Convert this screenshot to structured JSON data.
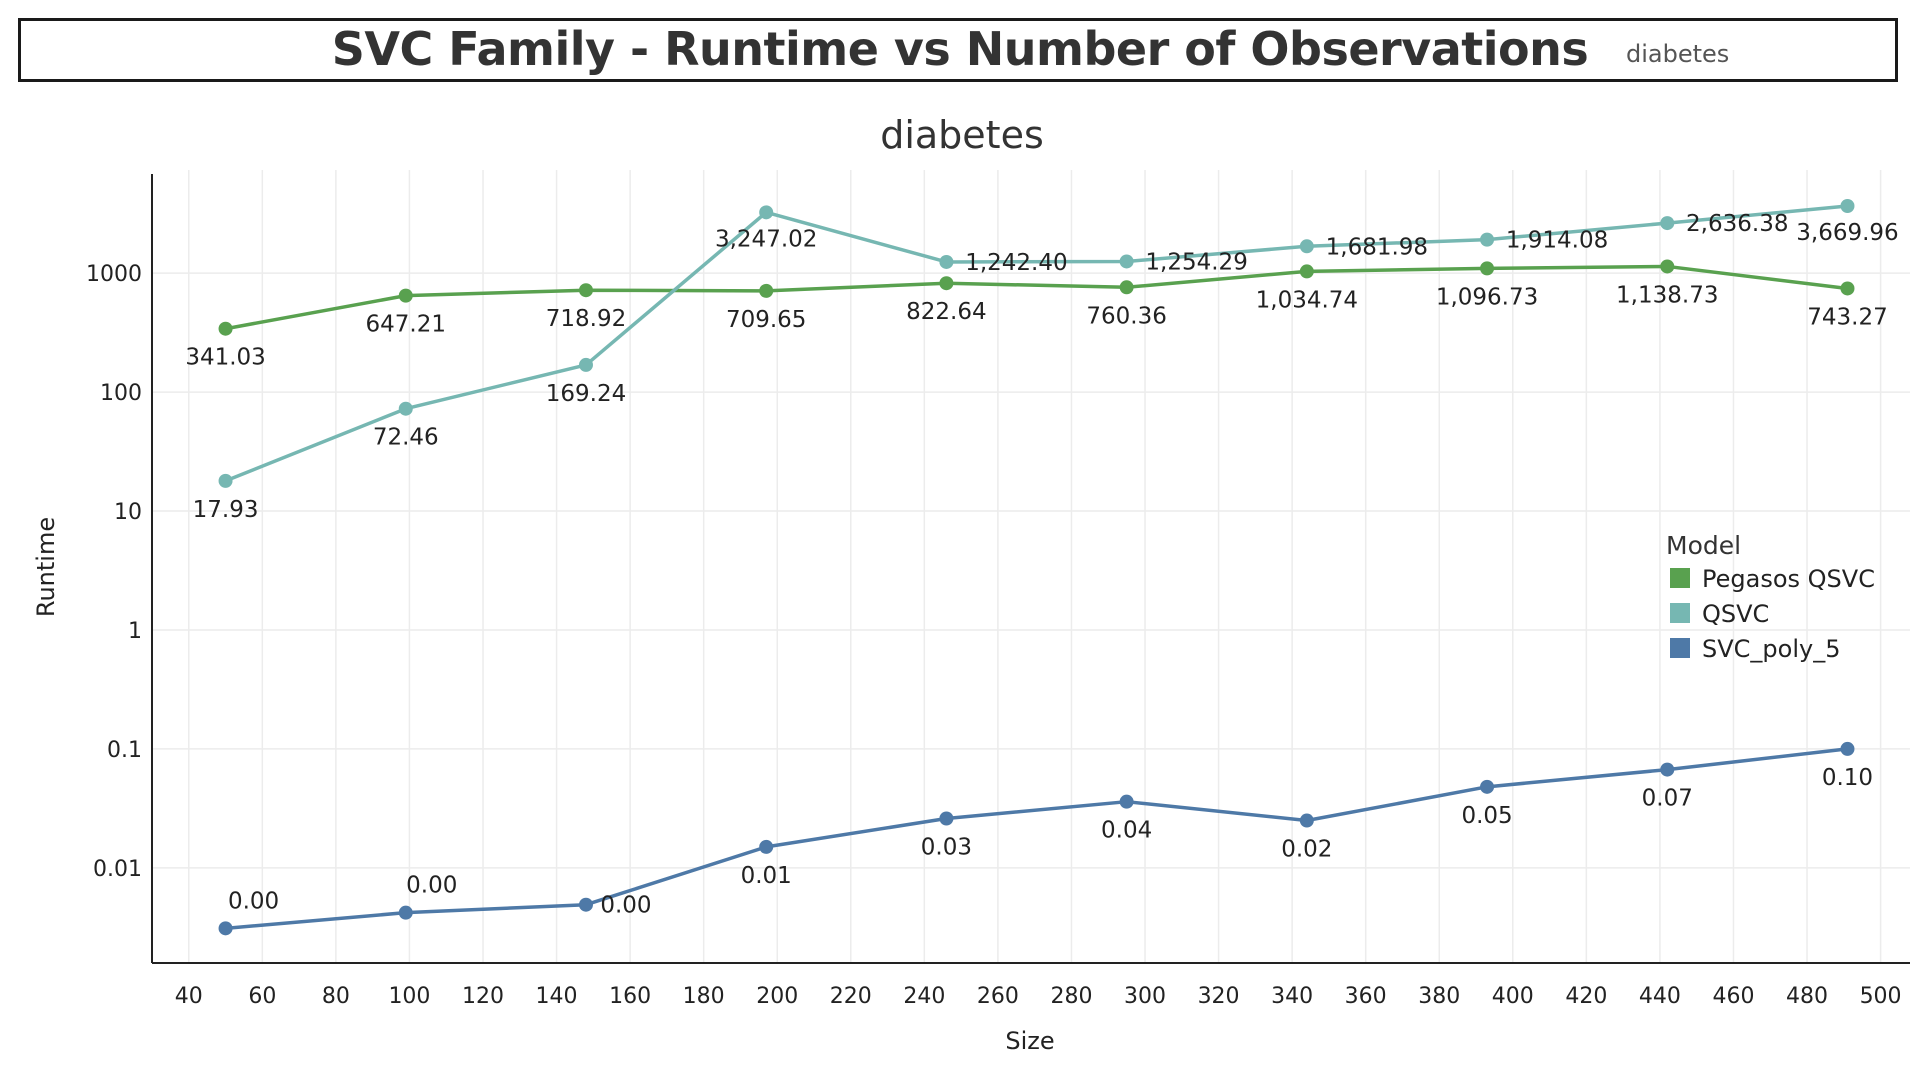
{
  "header": {
    "title": "SVC Family - Runtime vs Number of Observations",
    "filter_value": "diabetes"
  },
  "chart_data": {
    "type": "line",
    "title": "diabetes",
    "xlabel": "Size",
    "ylabel": "Runtime",
    "y_scale": "log",
    "xlim": [
      30,
      508
    ],
    "ylim_log10": [
      -2.8,
      3.8
    ],
    "x_ticks": [
      40,
      60,
      80,
      100,
      120,
      140,
      160,
      180,
      200,
      220,
      240,
      260,
      280,
      300,
      320,
      340,
      360,
      380,
      400,
      420,
      440,
      460,
      480,
      500
    ],
    "y_ticks": [
      {
        "value": 0.01,
        "label": "0.01"
      },
      {
        "value": 0.1,
        "label": "0.1"
      },
      {
        "value": 1,
        "label": "1"
      },
      {
        "value": 10,
        "label": "10"
      },
      {
        "value": 100,
        "label": "100"
      },
      {
        "value": 1000,
        "label": "1000"
      }
    ],
    "grid": true,
    "legend": {
      "title": "Model",
      "placement": "right"
    },
    "series": [
      {
        "name": "Pegasos QSVC",
        "color": "#59a14f",
        "x": [
          50,
          99,
          148,
          197,
          246,
          295,
          344,
          393,
          442,
          491
        ],
        "values": [
          341.03,
          647.21,
          718.92,
          709.65,
          822.64,
          760.36,
          1034.74,
          1096.73,
          1138.73,
          743.27
        ],
        "labels": [
          "341.03",
          "647.21",
          "718.92",
          "709.65",
          "822.64",
          "760.36",
          "1,034.74",
          "1,096.73",
          "1,138.73",
          "743.27"
        ]
      },
      {
        "name": "QSVC",
        "color": "#76b7b2",
        "x": [
          50,
          99,
          148,
          197,
          246,
          295,
          344,
          393,
          442,
          491
        ],
        "values": [
          17.93,
          72.46,
          169.24,
          3247.02,
          1242.4,
          1254.29,
          1681.98,
          1914.08,
          2636.38,
          3669.96
        ],
        "labels": [
          "17.93",
          "72.46",
          "169.24",
          "3,247.02",
          "1,242.40",
          "1,254.29",
          "1,681.98",
          "1,914.08",
          "2,636.38",
          "3,669.96"
        ]
      },
      {
        "name": "SVC_poly_5",
        "color": "#4e79a7",
        "x": [
          50,
          99,
          148,
          197,
          246,
          295,
          344,
          393,
          442,
          491
        ],
        "values": [
          0.0031,
          0.0042,
          0.0049,
          0.015,
          0.026,
          0.036,
          0.025,
          0.048,
          0.067,
          0.1
        ],
        "labels": [
          "0.00",
          "0.00",
          "0.00",
          "0.01",
          "0.03",
          "0.04",
          "0.02",
          "0.05",
          "0.07",
          "0.10"
        ]
      }
    ]
  }
}
